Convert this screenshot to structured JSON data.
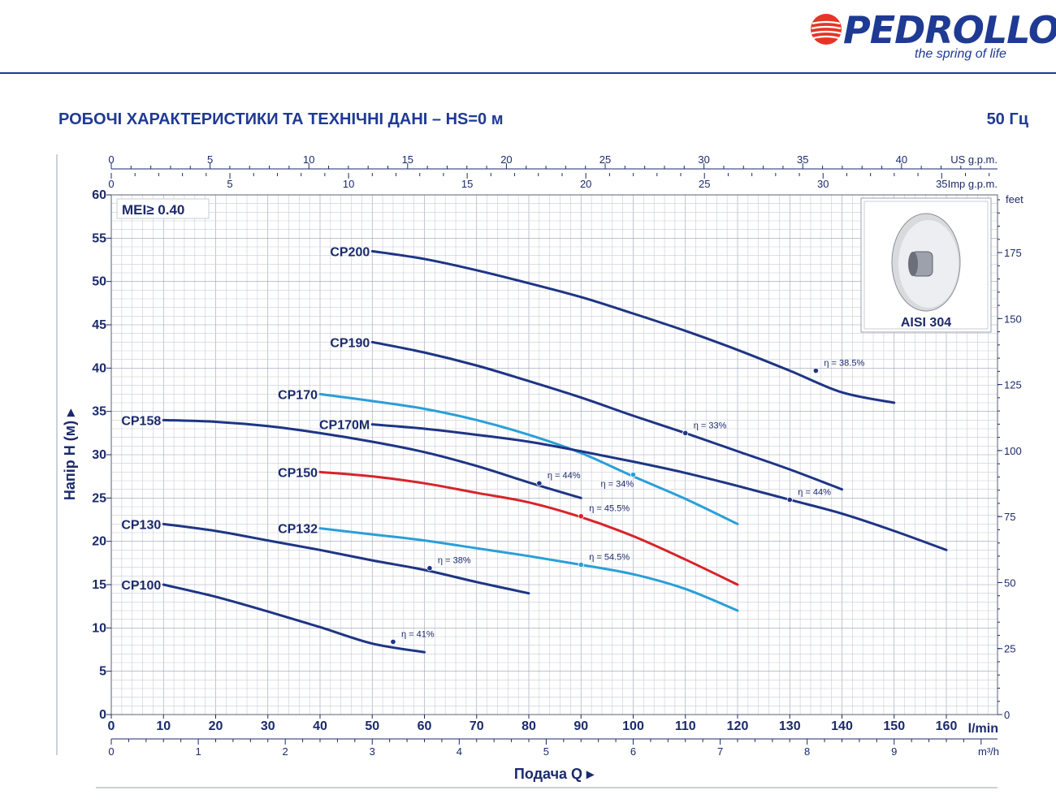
{
  "brand": {
    "name": "PEDROLLO",
    "tagline": "the spring of life",
    "accent": "#1f3a93",
    "logo_red": "#e53525"
  },
  "header": {
    "title": "РОБОЧІ ХАРАКТЕРИСТИКИ ТА ТЕХНІЧНІ ДАНІ  –  HS=0 м",
    "frequency": "50 Гц"
  },
  "chart_data": {
    "type": "line",
    "mei_label": "MEI≥ 0.40",
    "xlabel": "Подача Q",
    "ylabel": "Напір Н (м)",
    "x_unit": "l/min",
    "x_unit_m3h": "m³/h",
    "unit_us": "US g.p.m.",
    "unit_imp": "Imp g.p.m.",
    "unit_feet": "feet",
    "xlim": [
      0,
      170
    ],
    "ylim": [
      0,
      60
    ],
    "grid": true,
    "x_ticks": [
      0,
      10,
      20,
      30,
      40,
      50,
      60,
      70,
      80,
      90,
      100,
      110,
      120,
      130,
      140,
      150,
      160
    ],
    "y_ticks": [
      0,
      5,
      10,
      15,
      20,
      25,
      30,
      35,
      40,
      45,
      50,
      55,
      60
    ],
    "m3h_ticks": [
      0,
      1,
      2,
      3,
      4,
      5,
      6,
      7,
      8,
      9
    ],
    "us_ticks": [
      0,
      5,
      10,
      15,
      20,
      25,
      30,
      35,
      40
    ],
    "imp_ticks": [
      0,
      5,
      10,
      15,
      20,
      25,
      30,
      35
    ],
    "feet_ticks": [
      0,
      25,
      50,
      75,
      100,
      125,
      150,
      175
    ],
    "inset": {
      "label": "AISI 304"
    },
    "series": [
      {
        "name": "CP100",
        "color": "#1e3585",
        "x": [
          10,
          20,
          30,
          40,
          50,
          60
        ],
        "y": [
          15,
          13.6,
          11.9,
          10.1,
          8.2,
          7.2
        ],
        "eff": {
          "x": 54,
          "y": 8.4,
          "label": "η = 41%"
        }
      },
      {
        "name": "CP130",
        "color": "#1e3585",
        "x": [
          10,
          20,
          30,
          40,
          50,
          60,
          70,
          80
        ],
        "y": [
          22,
          21.2,
          20.1,
          19,
          17.8,
          16.7,
          15.3,
          14
        ],
        "eff": {
          "x": 61,
          "y": 16.9,
          "label": "η = 38%"
        }
      },
      {
        "name": "CP132",
        "color": "#2a9fd8",
        "x": [
          40,
          50,
          60,
          70,
          80,
          90,
          100,
          110,
          120
        ],
        "y": [
          21.5,
          20.8,
          20.1,
          19.2,
          18.3,
          17.3,
          16.2,
          14.5,
          12
        ],
        "eff": {
          "x": 90,
          "y": 17.3,
          "label": "η = 54.5%"
        }
      },
      {
        "name": "CP150",
        "color": "#d7242a",
        "x": [
          40,
          50,
          60,
          70,
          80,
          90,
          100,
          110,
          120
        ],
        "y": [
          28,
          27.5,
          26.7,
          25.6,
          24.5,
          22.8,
          20.6,
          17.9,
          15
        ],
        "eff": {
          "x": 90,
          "y": 22.9,
          "label": "η = 45.5%"
        }
      },
      {
        "name": "CP158",
        "color": "#1e3585",
        "x": [
          10,
          20,
          30,
          40,
          50,
          60,
          70,
          80,
          90
        ],
        "y": [
          34,
          33.8,
          33.3,
          32.5,
          31.5,
          30.3,
          28.7,
          26.8,
          25
        ],
        "eff": {
          "x": 82,
          "y": 26.7,
          "label": "η = 44%"
        }
      },
      {
        "name": "CP170",
        "color": "#2a9fd8",
        "x": [
          40,
          50,
          60,
          70,
          80,
          90,
          100,
          110,
          120
        ],
        "y": [
          37,
          36.2,
          35.3,
          34,
          32.3,
          30.2,
          27.5,
          24.9,
          22
        ],
        "eff": {
          "x": 100,
          "y": 27.7,
          "label": "η = 34%"
        }
      },
      {
        "name": "CP170M",
        "color": "#1e3585",
        "x": [
          50,
          60,
          70,
          80,
          90,
          100,
          110,
          120,
          130,
          140,
          150,
          160
        ],
        "y": [
          33.5,
          33,
          32.3,
          31.5,
          30.4,
          29.2,
          27.9,
          26.4,
          24.8,
          23.2,
          21.2,
          19
        ],
        "eff": {
          "x": 130,
          "y": 24.8,
          "label": "η = 44%"
        }
      },
      {
        "name": "CP190",
        "color": "#1e3585",
        "x": [
          50,
          60,
          70,
          80,
          90,
          100,
          110,
          120,
          130,
          140
        ],
        "y": [
          43,
          41.8,
          40.3,
          38.5,
          36.6,
          34.5,
          32.5,
          30.4,
          28.3,
          26
        ],
        "eff": {
          "x": 110,
          "y": 32.5,
          "label": "η = 33%"
        }
      },
      {
        "name": "CP200",
        "color": "#1e3585",
        "x": [
          50,
          60,
          70,
          80,
          90,
          100,
          110,
          120,
          130,
          140,
          150
        ],
        "y": [
          53.5,
          52.6,
          51.3,
          49.8,
          48.2,
          46.3,
          44.3,
          42.1,
          39.7,
          37.2,
          36
        ],
        "eff": {
          "x": 135,
          "y": 39.7,
          "label": "η = 38.5%"
        }
      }
    ]
  }
}
